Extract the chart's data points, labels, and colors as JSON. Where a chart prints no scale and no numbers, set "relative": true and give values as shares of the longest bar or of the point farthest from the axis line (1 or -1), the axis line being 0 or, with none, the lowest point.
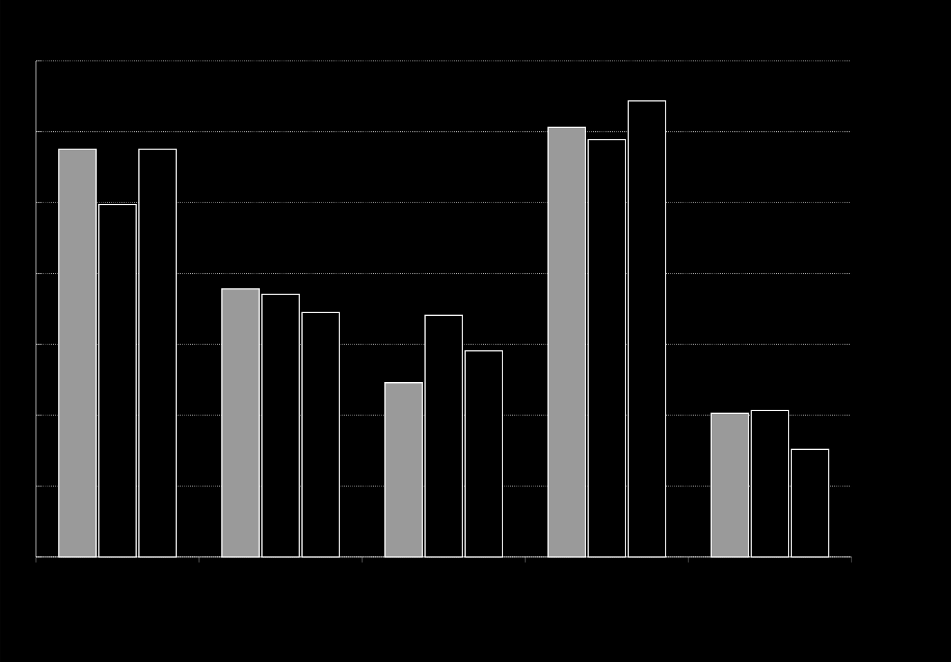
{
  "chart_data": {
    "type": "bar",
    "relative": true,
    "categories": [
      null,
      null,
      null,
      null,
      null
    ],
    "series": [
      {
        "color": "#9a9a9a",
        "values": [
          0.894,
          0.588,
          0.382,
          0.942,
          0.315
        ]
      },
      {
        "color": "#000000",
        "values": [
          0.773,
          0.576,
          0.53,
          0.915,
          0.321
        ]
      },
      {
        "color": "#000000",
        "values": [
          0.894,
          0.536,
          0.452,
          1,
          0.236
        ]
      }
    ],
    "grid": "y"
  }
}
